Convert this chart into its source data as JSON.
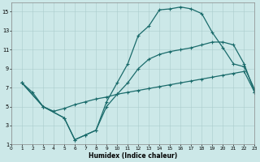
{
  "xlabel": "Humidex (Indice chaleur)",
  "bg_color": "#cce8e8",
  "line_color": "#1a6b6b",
  "grid_color": "#aacccc",
  "xlim": [
    0,
    23
  ],
  "ylim": [
    1,
    16
  ],
  "xticks": [
    0,
    1,
    2,
    3,
    4,
    5,
    6,
    7,
    8,
    9,
    10,
    11,
    12,
    13,
    14,
    15,
    16,
    17,
    18,
    19,
    20,
    21,
    22,
    23
  ],
  "yticks": [
    1,
    3,
    5,
    7,
    9,
    11,
    13,
    15
  ],
  "line_straight_x": [
    1,
    2,
    3,
    4,
    5,
    6,
    7,
    8,
    9,
    10,
    11,
    12,
    13,
    14,
    15,
    16,
    17,
    18,
    19,
    20,
    21,
    22,
    23
  ],
  "line_straight_y": [
    7.5,
    6.5,
    5.0,
    4.5,
    4.8,
    5.2,
    5.5,
    5.8,
    6.0,
    6.3,
    6.5,
    6.7,
    6.9,
    7.1,
    7.3,
    7.5,
    7.7,
    7.9,
    8.1,
    8.3,
    8.5,
    8.7,
    6.5
  ],
  "line_top_x": [
    1,
    3,
    5,
    6,
    7,
    8,
    9,
    10,
    11,
    12,
    13,
    14,
    15,
    16,
    17,
    18,
    19,
    20,
    21,
    22,
    23
  ],
  "line_top_y": [
    7.5,
    5.0,
    3.8,
    1.5,
    2.0,
    2.5,
    5.5,
    7.5,
    9.5,
    12.5,
    13.5,
    15.2,
    15.3,
    15.5,
    15.3,
    14.8,
    12.8,
    11.2,
    9.5,
    9.2,
    6.8
  ],
  "line_mid_x": [
    1,
    3,
    5,
    6,
    7,
    8,
    9,
    10,
    11,
    12,
    13,
    14,
    15,
    16,
    17,
    18,
    19,
    20,
    21,
    22,
    23
  ],
  "line_mid_y": [
    7.5,
    5.0,
    3.8,
    1.5,
    2.0,
    2.5,
    5.0,
    6.3,
    7.5,
    9.0,
    10.0,
    10.5,
    10.8,
    11.0,
    11.2,
    11.5,
    11.8,
    11.8,
    11.5,
    9.5,
    6.5
  ]
}
